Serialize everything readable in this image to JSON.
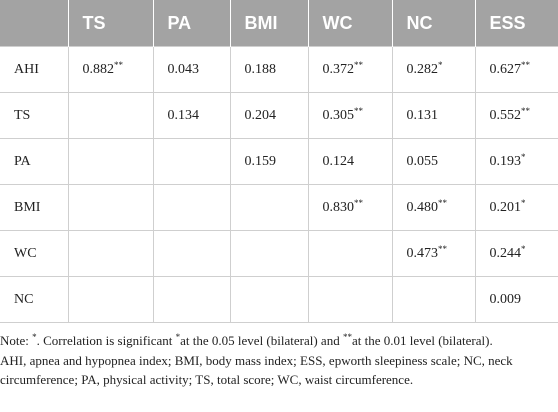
{
  "table": {
    "header": [
      "TS",
      "PA",
      "BMI",
      "WC",
      "NC",
      "ESS"
    ],
    "rows": [
      {
        "label": "AHI",
        "cells": [
          {
            "text": "0.882",
            "sig": "**"
          },
          {
            "text": "0.043"
          },
          {
            "text": "0.188"
          },
          {
            "text": "0.372",
            "sig": "**"
          },
          {
            "text": "0.282",
            "sig": "*"
          },
          {
            "text": "0.627",
            "sig": "**"
          }
        ]
      },
      {
        "label": "TS",
        "cells": [
          null,
          {
            "text": "0.134"
          },
          {
            "text": "0.204"
          },
          {
            "text": "0.305",
            "sig": "**"
          },
          {
            "text": "0.131"
          },
          {
            "text": "0.552",
            "sig": "**"
          }
        ]
      },
      {
        "label": "PA",
        "cells": [
          null,
          null,
          {
            "text": "0.159"
          },
          {
            "text": "0.124"
          },
          {
            "text": "0.055"
          },
          {
            "text": "0.193",
            "sig": "*"
          }
        ]
      },
      {
        "label": "BMI",
        "cells": [
          null,
          null,
          null,
          {
            "text": "0.830",
            "sig": "**"
          },
          {
            "text": "0.480",
            "sig": "**"
          },
          {
            "text": "0.201",
            "sig": "*"
          }
        ]
      },
      {
        "label": "WC",
        "cells": [
          null,
          null,
          null,
          null,
          {
            "text": "0.473",
            "sig": "**"
          },
          {
            "text": "0.244",
            "sig": "*"
          }
        ]
      },
      {
        "label": "NC",
        "cells": [
          null,
          null,
          null,
          null,
          null,
          {
            "text": "0.009"
          }
        ]
      }
    ]
  },
  "notes": [
    [
      {
        "text": "Note: "
      },
      {
        "sup": "*"
      },
      {
        "text": ". Correlation is significant "
      },
      {
        "sup": "*"
      },
      {
        "text": "at the 0.05 level (bilateral) and "
      },
      {
        "sup": "**"
      },
      {
        "text": "at the 0.01 level (bilateral)."
      }
    ],
    [
      {
        "text": "AHI, apnea and hypopnea index; BMI, body mass index; ESS, epworth sleepiness scale; NC, neck circumference; PA, physical activity; TS, total score; WC, waist circumference."
      }
    ]
  ]
}
